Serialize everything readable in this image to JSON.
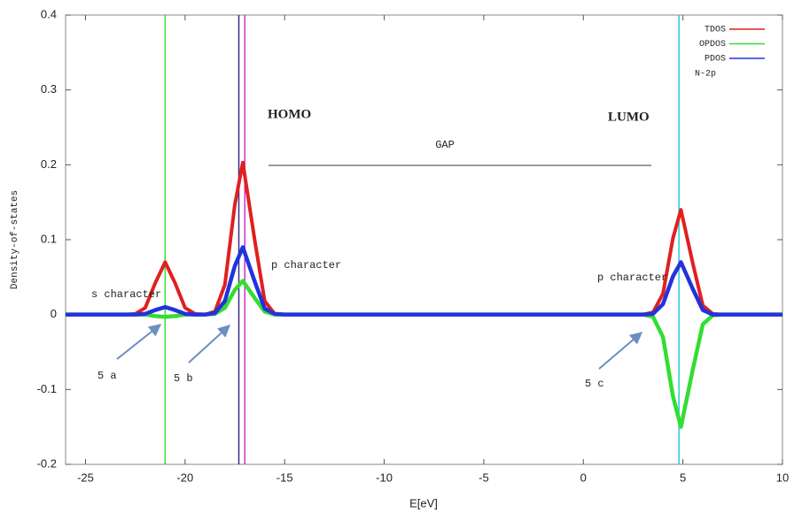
{
  "chart_data": {
    "type": "line",
    "xlabel": "E[eV]",
    "ylabel": "Density-of-states",
    "xlim": [
      -26,
      10
    ],
    "xticks": [
      -25,
      -20,
      -15,
      -10,
      -5,
      0,
      5,
      10
    ],
    "ylim": [
      -0.2,
      0.4
    ],
    "yticks": [
      -0.2,
      -0.1,
      0,
      0.1,
      0.2,
      0.3,
      0.4
    ],
    "legend": "upper right",
    "x": [
      -26,
      -23,
      -22.5,
      -22,
      -21.5,
      -21,
      -20.5,
      -20,
      -19.5,
      -19,
      -18.5,
      -18,
      -17.5,
      -17.1,
      -16.5,
      -16,
      -15.5,
      -15,
      3,
      3.5,
      4,
      4.5,
      4.9,
      5.5,
      6,
      6.5,
      7,
      10
    ],
    "series": [
      {
        "name": "TDOS",
        "color": "#e02020",
        "values": [
          0,
          0,
          0.001,
          0.009,
          0.042,
          0.07,
          0.042,
          0.009,
          0.001,
          0,
          0.004,
          0.04,
          0.147,
          0.203,
          0.099,
          0.018,
          0.001,
          0,
          0,
          0.003,
          0.028,
          0.102,
          0.14,
          0.068,
          0.012,
          0.001,
          0,
          0
        ]
      },
      {
        "name": "OPDOS",
        "color": "#33dd33",
        "values": [
          0,
          0,
          0,
          0,
          -0.002,
          -0.003,
          -0.002,
          0,
          0,
          0,
          0.001,
          0.009,
          0.033,
          0.045,
          0.022,
          0.004,
          0,
          0,
          0,
          -0.003,
          -0.03,
          -0.109,
          -0.15,
          -0.073,
          -0.013,
          -0.001,
          0,
          0
        ]
      },
      {
        "name": "PDOS",
        "color": "#2233dd",
        "values": [
          0,
          0,
          0,
          0.001,
          0.006,
          0.01,
          0.006,
          0.001,
          0,
          0,
          0.002,
          0.018,
          0.065,
          0.09,
          0.044,
          0.008,
          0.001,
          0,
          0,
          0.001,
          0.014,
          0.051,
          0.07,
          0.034,
          0.006,
          0,
          0,
          0
        ]
      }
    ],
    "reference_lines": [
      {
        "x": -21,
        "color": "#33dd33"
      },
      {
        "x": -17.3,
        "color": "#3a2a8a"
      },
      {
        "x": -17,
        "color": "#cc33cc"
      },
      {
        "x": 4.8,
        "color": "#22ccdd"
      }
    ],
    "annotations": [
      "N-2p",
      "HOMO",
      "LUMO",
      "GAP",
      "s character",
      "p character",
      "p character",
      "5 a",
      "5 b",
      "5 c"
    ]
  }
}
